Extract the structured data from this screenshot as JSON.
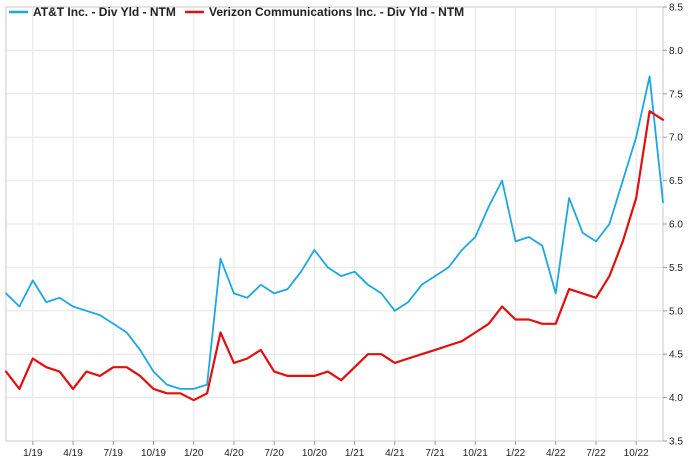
{
  "chart_data": {
    "type": "line",
    "title": "",
    "xlabel": "",
    "ylabel": "",
    "x_ticks": [
      "1/19",
      "4/19",
      "7/19",
      "10/19",
      "1/20",
      "4/20",
      "7/20",
      "10/20",
      "1/21",
      "4/21",
      "7/21",
      "10/21",
      "1/22",
      "4/22",
      "7/22",
      "10/22"
    ],
    "y_ticks": [
      "3.5",
      "4.0",
      "4.5",
      "5.0",
      "5.5",
      "6.0",
      "6.5",
      "7.0",
      "7.5",
      "8.0",
      "8.5"
    ],
    "x_range": [
      "2018-11",
      "2022-12"
    ],
    "ylim": [
      3.5,
      8.5
    ],
    "y_axis_side": "right",
    "grid": true,
    "legend_position": "top-left",
    "series": [
      {
        "name": "AT&T Inc. - Div Yld - NTM",
        "color": "#1ea7e1",
        "points": [
          [
            "2018-11",
            5.2
          ],
          [
            "2018-12",
            5.05
          ],
          [
            "2019-01",
            5.35
          ],
          [
            "2019-02",
            5.1
          ],
          [
            "2019-03",
            5.15
          ],
          [
            "2019-04",
            5.05
          ],
          [
            "2019-05",
            5.0
          ],
          [
            "2019-06",
            4.95
          ],
          [
            "2019-07",
            4.85
          ],
          [
            "2019-08",
            4.75
          ],
          [
            "2019-09",
            4.55
          ],
          [
            "2019-10",
            4.3
          ],
          [
            "2019-11",
            4.15
          ],
          [
            "2019-12",
            4.1
          ],
          [
            "2020-01",
            4.1
          ],
          [
            "2020-02",
            4.15
          ],
          [
            "2020-03",
            5.6
          ],
          [
            "2020-04",
            5.2
          ],
          [
            "2020-05",
            5.15
          ],
          [
            "2020-06",
            5.3
          ],
          [
            "2020-07",
            5.2
          ],
          [
            "2020-08",
            5.25
          ],
          [
            "2020-09",
            5.45
          ],
          [
            "2020-10",
            5.7
          ],
          [
            "2020-11",
            5.5
          ],
          [
            "2020-12",
            5.4
          ],
          [
            "2021-01",
            5.45
          ],
          [
            "2021-02",
            5.3
          ],
          [
            "2021-03",
            5.2
          ],
          [
            "2021-04",
            5.0
          ],
          [
            "2021-05",
            5.1
          ],
          [
            "2021-06",
            5.3
          ],
          [
            "2021-07",
            5.4
          ],
          [
            "2021-08",
            5.5
          ],
          [
            "2021-09",
            5.7
          ],
          [
            "2021-10",
            5.85
          ],
          [
            "2021-11",
            6.2
          ],
          [
            "2021-12",
            6.5
          ],
          [
            "2022-01",
            5.8
          ],
          [
            "2022-02",
            5.85
          ],
          [
            "2022-03",
            5.75
          ],
          [
            "2022-04",
            5.2
          ],
          [
            "2022-05",
            6.3
          ],
          [
            "2022-06",
            5.9
          ],
          [
            "2022-07",
            5.8
          ],
          [
            "2022-08",
            6.0
          ],
          [
            "2022-09",
            6.5
          ],
          [
            "2022-10",
            7.0
          ],
          [
            "2022-11",
            7.7
          ],
          [
            "2022-12",
            6.25
          ]
        ]
      },
      {
        "name": "Verizon Communications Inc. - Div Yld - NTM",
        "color": "#e01010",
        "points": [
          [
            "2018-11",
            4.3
          ],
          [
            "2018-12",
            4.1
          ],
          [
            "2019-01",
            4.45
          ],
          [
            "2019-02",
            4.35
          ],
          [
            "2019-03",
            4.3
          ],
          [
            "2019-04",
            4.1
          ],
          [
            "2019-05",
            4.3
          ],
          [
            "2019-06",
            4.25
          ],
          [
            "2019-07",
            4.35
          ],
          [
            "2019-08",
            4.35
          ],
          [
            "2019-09",
            4.25
          ],
          [
            "2019-10",
            4.1
          ],
          [
            "2019-11",
            4.05
          ],
          [
            "2019-12",
            4.05
          ],
          [
            "2020-01",
            3.97
          ],
          [
            "2020-02",
            4.05
          ],
          [
            "2020-03",
            4.75
          ],
          [
            "2020-04",
            4.4
          ],
          [
            "2020-05",
            4.45
          ],
          [
            "2020-06",
            4.55
          ],
          [
            "2020-07",
            4.3
          ],
          [
            "2020-08",
            4.25
          ],
          [
            "2020-09",
            4.25
          ],
          [
            "2020-10",
            4.25
          ],
          [
            "2020-11",
            4.3
          ],
          [
            "2020-12",
            4.2
          ],
          [
            "2021-01",
            4.35
          ],
          [
            "2021-02",
            4.5
          ],
          [
            "2021-03",
            4.5
          ],
          [
            "2021-04",
            4.4
          ],
          [
            "2021-05",
            4.45
          ],
          [
            "2021-06",
            4.5
          ],
          [
            "2021-07",
            4.55
          ],
          [
            "2021-08",
            4.6
          ],
          [
            "2021-09",
            4.65
          ],
          [
            "2021-10",
            4.75
          ],
          [
            "2021-11",
            4.85
          ],
          [
            "2021-12",
            5.05
          ],
          [
            "2022-01",
            4.9
          ],
          [
            "2022-02",
            4.9
          ],
          [
            "2022-03",
            4.85
          ],
          [
            "2022-04",
            4.85
          ],
          [
            "2022-05",
            5.25
          ],
          [
            "2022-06",
            5.2
          ],
          [
            "2022-07",
            5.15
          ],
          [
            "2022-08",
            5.4
          ],
          [
            "2022-09",
            5.8
          ],
          [
            "2022-10",
            6.3
          ],
          [
            "2022-11",
            7.3
          ],
          [
            "2022-12",
            7.2
          ]
        ]
      }
    ]
  }
}
